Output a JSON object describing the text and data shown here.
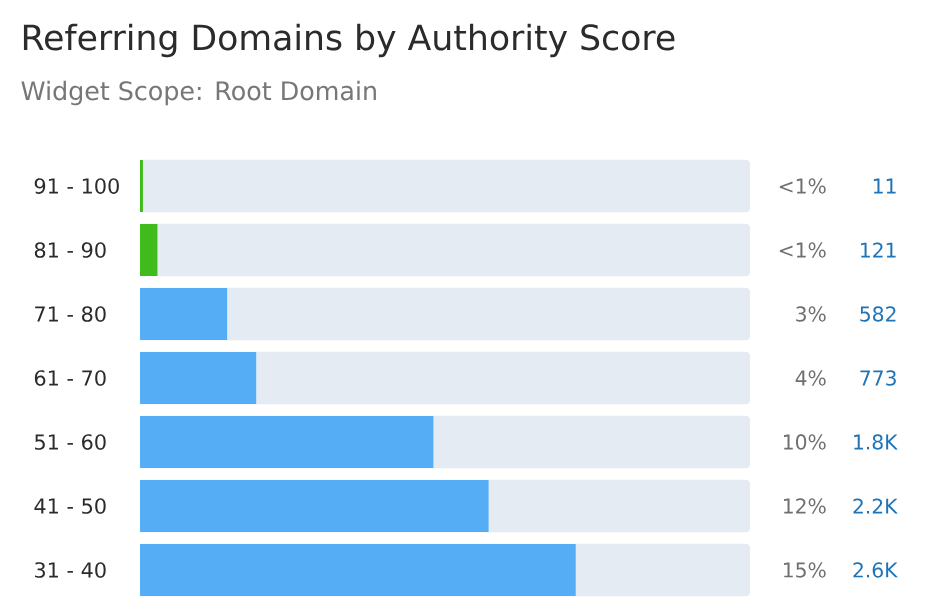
{
  "chart_data": {
    "type": "bar",
    "orientation": "horizontal",
    "title": "Referring Domains by Authority Score",
    "subtitle": "Widget Scope: Root Domain",
    "categories": [
      "91 - 100",
      "81 - 90",
      "71 - 80",
      "61 - 70",
      "51 - 60",
      "41 - 50",
      "31 - 40"
    ],
    "values": [
      0.1,
      0.6,
      3,
      4,
      10.1,
      12,
      15
    ],
    "colors": [
      "#3fbc1c",
      "#3fbc1c",
      "#55aef5",
      "#55aef5",
      "#55aef5",
      "#55aef5",
      "#55aef5"
    ],
    "value_labels": [
      "<1%",
      "<1%",
      "3%",
      "4%",
      "10%",
      "12%",
      "15%"
    ],
    "xlim": [
      0,
      21
    ],
    "annotations": [
      "11",
      "121",
      "582",
      "773",
      "1.8K",
      "2.2K",
      "2.6K"
    ]
  }
}
